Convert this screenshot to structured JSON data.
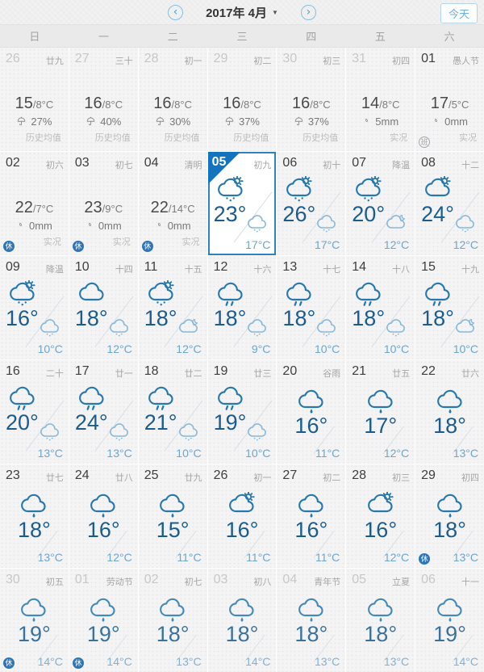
{
  "header": {
    "title": "2017年 4月",
    "caret": "▼",
    "prev": "‹",
    "next": "›",
    "today_label": "今天"
  },
  "weekdays": [
    "日",
    "一",
    "二",
    "三",
    "四",
    "五",
    "六"
  ],
  "colors": {
    "accent_blue": "#2b82c4",
    "selected_corner": "#1473bd",
    "day_temp": "#1b5c8d",
    "night_temp": "#6ca6cf",
    "holiday_badge": "#2e75b6",
    "workday_badge": "#a3a8ad"
  },
  "cells": [
    {
      "date": "26",
      "lunar": "廿九",
      "type": "hist",
      "dim": true,
      "hi": "15",
      "lo": "/8°C",
      "metric": "27%",
      "metric_icon": "umbrella",
      "label": "历史均值"
    },
    {
      "date": "27",
      "lunar": "三十",
      "type": "hist",
      "dim": true,
      "hi": "16",
      "lo": "/8°C",
      "metric": "40%",
      "metric_icon": "umbrella",
      "label": "历史均值"
    },
    {
      "date": "28",
      "lunar": "初一",
      "type": "hist",
      "dim": true,
      "hi": "16",
      "lo": "/8°C",
      "metric": "30%",
      "metric_icon": "umbrella",
      "label": "历史均值"
    },
    {
      "date": "29",
      "lunar": "初二",
      "type": "hist",
      "dim": true,
      "hi": "16",
      "lo": "/8°C",
      "metric": "37%",
      "metric_icon": "umbrella",
      "label": "历史均值"
    },
    {
      "date": "30",
      "lunar": "初三",
      "type": "hist",
      "dim": true,
      "hi": "16",
      "lo": "/8°C",
      "metric": "37%",
      "metric_icon": "umbrella",
      "label": "历史均值"
    },
    {
      "date": "31",
      "lunar": "初四",
      "type": "hist",
      "dim": true,
      "hi": "14",
      "lo": "/8°C",
      "metric": "5mm",
      "metric_icon": "drop",
      "label": "实况"
    },
    {
      "date": "01",
      "lunar": "愚人节",
      "type": "hist",
      "dim": false,
      "hi": "17",
      "lo": "/5°C",
      "metric": "0mm",
      "metric_icon": "drop",
      "label": "实况",
      "badge": "班"
    },
    {
      "date": "02",
      "lunar": "初六",
      "type": "hist",
      "dim": false,
      "hi": "22",
      "lo": "/7°C",
      "metric": "0mm",
      "metric_icon": "drop",
      "label": "实况",
      "badge": "休"
    },
    {
      "date": "03",
      "lunar": "初七",
      "type": "hist",
      "dim": false,
      "hi": "23",
      "lo": "/9°C",
      "metric": "0mm",
      "metric_icon": "drop",
      "label": "实况",
      "badge": "休"
    },
    {
      "date": "04",
      "lunar": "清明",
      "type": "hist",
      "dim": false,
      "hi": "22",
      "lo": "/14°C",
      "metric": "0mm",
      "metric_icon": "drop",
      "label": "实况",
      "badge": "休"
    },
    {
      "date": "05",
      "lunar": "初九",
      "type": "forecast",
      "selected": true,
      "day_icon": "sun-cloud-rain",
      "day_temp": "23°",
      "night_icon": "night-cloud-rain",
      "night_temp": "17°C"
    },
    {
      "date": "06",
      "lunar": "初十",
      "type": "forecast",
      "day_icon": "sun-cloud-rain",
      "day_temp": "26°",
      "night_icon": "night-cloud-rain",
      "night_temp": "17°C"
    },
    {
      "date": "07",
      "lunar": "降温",
      "type": "forecast",
      "day_icon": "sun-cloud-rain",
      "day_temp": "20°",
      "night_icon": "night-cloud-moon",
      "night_temp": "12°C"
    },
    {
      "date": "08",
      "lunar": "十二",
      "type": "forecast",
      "day_icon": "sun-cloud",
      "day_temp": "24°",
      "night_icon": "night-cloud-rain",
      "night_temp": "12°C"
    },
    {
      "date": "09",
      "lunar": "降温",
      "type": "forecast",
      "day_icon": "sun-cloud-rain",
      "day_temp": "16°",
      "night_icon": "night-cloud-rain",
      "night_temp": "10°C"
    },
    {
      "date": "10",
      "lunar": "十四",
      "type": "forecast",
      "day_icon": "cloud",
      "day_temp": "18°",
      "night_icon": "night-cloud-rain",
      "night_temp": "12°C"
    },
    {
      "date": "11",
      "lunar": "十五",
      "type": "forecast",
      "day_icon": "sun-cloud-rain",
      "day_temp": "18°",
      "night_icon": "night-cloud-moon",
      "night_temp": "12°C"
    },
    {
      "date": "12",
      "lunar": "十六",
      "type": "forecast",
      "day_icon": "cloud-rain2",
      "day_temp": "18°",
      "night_icon": "night-cloud-rain",
      "night_temp": "9°C"
    },
    {
      "date": "13",
      "lunar": "十七",
      "type": "forecast",
      "day_icon": "cloud-rain2",
      "day_temp": "18°",
      "night_icon": "night-cloud-rain",
      "night_temp": "10°C"
    },
    {
      "date": "14",
      "lunar": "十八",
      "type": "forecast",
      "day_icon": "cloud-rain2",
      "day_temp": "18°",
      "night_icon": "night-cloud-rain",
      "night_temp": "10°C"
    },
    {
      "date": "15",
      "lunar": "十九",
      "type": "forecast",
      "day_icon": "cloud-rain2",
      "day_temp": "18°",
      "night_icon": "night-cloud-moon",
      "night_temp": "10°C"
    },
    {
      "date": "16",
      "lunar": "二十",
      "type": "forecast",
      "day_icon": "cloud-rain2",
      "day_temp": "20°",
      "night_icon": "night-cloud-rain",
      "night_temp": "13°C"
    },
    {
      "date": "17",
      "lunar": "廿一",
      "type": "forecast",
      "day_icon": "cloud-rain2",
      "day_temp": "24°",
      "night_icon": "night-cloud-rain",
      "night_temp": "13°C"
    },
    {
      "date": "18",
      "lunar": "廿二",
      "type": "forecast",
      "day_icon": "cloud-rain2",
      "day_temp": "21°",
      "night_icon": "night-cloud-rain",
      "night_temp": "10°C"
    },
    {
      "date": "19",
      "lunar": "廿三",
      "type": "forecast",
      "day_icon": "cloud-rain2",
      "day_temp": "19°",
      "night_icon": "night-cloud-rain",
      "night_temp": "10°C"
    },
    {
      "date": "20",
      "lunar": "谷雨",
      "type": "forecast",
      "day_icon": "cloud-rain1",
      "day_temp": "16°",
      "night_temp": "11°C"
    },
    {
      "date": "21",
      "lunar": "廿五",
      "type": "forecast",
      "day_icon": "cloud-rain1",
      "day_temp": "17°",
      "night_temp": "12°C"
    },
    {
      "date": "22",
      "lunar": "廿六",
      "type": "forecast",
      "day_icon": "cloud-rain1",
      "day_temp": "18°",
      "night_temp": "13°C"
    },
    {
      "date": "23",
      "lunar": "廿七",
      "type": "forecast",
      "day_icon": "cloud-rain1",
      "day_temp": "18°",
      "night_temp": "13°C"
    },
    {
      "date": "24",
      "lunar": "廿八",
      "type": "forecast",
      "day_icon": "cloud-rain1",
      "day_temp": "16°",
      "night_temp": "12°C"
    },
    {
      "date": "25",
      "lunar": "廿九",
      "type": "forecast",
      "day_icon": "cloud-rain1",
      "day_temp": "15°",
      "night_temp": "11°C"
    },
    {
      "date": "26",
      "lunar": "初一",
      "type": "forecast",
      "day_icon": "sun-cloud",
      "day_temp": "16°",
      "night_temp": "11°C"
    },
    {
      "date": "27",
      "lunar": "初二",
      "type": "forecast",
      "day_icon": "cloud-rain1",
      "day_temp": "16°",
      "night_temp": "11°C"
    },
    {
      "date": "28",
      "lunar": "初三",
      "type": "forecast",
      "day_icon": "sun-cloud",
      "day_temp": "16°",
      "night_temp": "12°C"
    },
    {
      "date": "29",
      "lunar": "初四",
      "type": "forecast",
      "day_icon": "cloud-rain1",
      "day_temp": "18°",
      "night_temp": "13°C",
      "badge": "休"
    },
    {
      "date": "30",
      "lunar": "初五",
      "type": "forecast",
      "dim": true,
      "day_icon": "cloud-rain1",
      "day_temp": "19°",
      "night_temp": "14°C",
      "badge": "休"
    },
    {
      "date": "01",
      "lunar": "劳动节",
      "type": "forecast",
      "dim": true,
      "day_icon": "cloud-rain1",
      "day_temp": "19°",
      "night_temp": "14°C",
      "badge": "休"
    },
    {
      "date": "02",
      "lunar": "初七",
      "type": "forecast",
      "dim": true,
      "day_icon": "cloud-rain1",
      "day_temp": "18°",
      "night_temp": "13°C"
    },
    {
      "date": "03",
      "lunar": "初八",
      "type": "forecast",
      "dim": true,
      "day_icon": "cloud-rain1",
      "day_temp": "18°",
      "night_temp": "14°C"
    },
    {
      "date": "04",
      "lunar": "青年节",
      "type": "forecast",
      "dim": true,
      "day_icon": "cloud-rain1",
      "day_temp": "18°",
      "night_temp": "13°C"
    },
    {
      "date": "05",
      "lunar": "立夏",
      "type": "forecast",
      "dim": true,
      "day_icon": "cloud-rain1",
      "day_temp": "18°",
      "night_temp": "13°C"
    },
    {
      "date": "06",
      "lunar": "十一",
      "type": "forecast",
      "dim": true,
      "day_icon": "cloud-rain1",
      "day_temp": "19°",
      "night_temp": "14°C"
    }
  ]
}
